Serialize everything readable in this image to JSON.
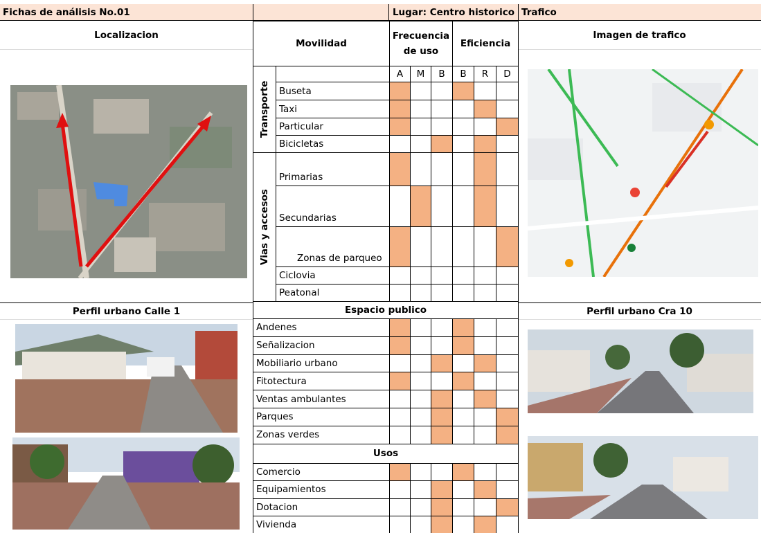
{
  "header": {
    "title": "Fichas de análisis No.01",
    "lugar": "Lugar: Centro historico",
    "trafico": "Trafico"
  },
  "panels": {
    "localizacion": "Localizacion",
    "imagen_trafico": "Imagen de trafico",
    "perfil_calle": "Perfil urbano Calle 1",
    "perfil_cra": "Perfil urbano Cra 10"
  },
  "movilidad": {
    "title": "Movilidad",
    "frecuencia": "Frecuencia de uso",
    "eficiencia": "Eficiencia",
    "columns": [
      "A",
      "M",
      "B",
      "B",
      "R",
      "D"
    ],
    "groups": [
      {
        "label": "Transporte",
        "rows": [
          {
            "label": "Buseta",
            "filled": [
              true,
              false,
              false,
              true,
              false,
              false
            ]
          },
          {
            "label": "Taxi",
            "filled": [
              true,
              false,
              false,
              false,
              true,
              false
            ]
          },
          {
            "label": "Particular",
            "filled": [
              true,
              false,
              false,
              false,
              false,
              true
            ]
          },
          {
            "label": "Bicicletas",
            "filled": [
              false,
              false,
              true,
              false,
              true,
              false
            ]
          }
        ]
      },
      {
        "label": "Vias y accesos",
        "rows": [
          {
            "label": "Primarias",
            "filled": [
              true,
              false,
              false,
              false,
              true,
              false
            ]
          },
          {
            "label": "Secundarias",
            "filled": [
              false,
              true,
              false,
              false,
              true,
              false
            ]
          },
          {
            "label": "Zonas de parqueo",
            "filled": [
              true,
              false,
              false,
              false,
              false,
              true
            ]
          },
          {
            "label": "Ciclovia",
            "filled": [
              false,
              false,
              false,
              false,
              false,
              false
            ]
          },
          {
            "label": "Peatonal",
            "filled": [
              false,
              false,
              false,
              false,
              false,
              false
            ]
          }
        ]
      }
    ]
  },
  "espacio_publico": {
    "title": "Espacio publico",
    "rows": [
      {
        "label": "Andenes",
        "filled": [
          true,
          false,
          false,
          true,
          false,
          false
        ]
      },
      {
        "label": "Señalizacion",
        "filled": [
          true,
          false,
          false,
          true,
          false,
          false
        ]
      },
      {
        "label": "Mobiliario urbano",
        "filled": [
          false,
          false,
          true,
          false,
          true,
          false
        ]
      },
      {
        "label": "Fitotectura",
        "filled": [
          true,
          false,
          false,
          true,
          false,
          false
        ]
      },
      {
        "label": "Ventas ambulantes",
        "filled": [
          false,
          false,
          true,
          false,
          true,
          false
        ]
      },
      {
        "label": "Parques",
        "filled": [
          false,
          false,
          true,
          false,
          false,
          true
        ]
      },
      {
        "label": "Zonas verdes",
        "filled": [
          false,
          false,
          true,
          false,
          false,
          true
        ]
      }
    ]
  },
  "usos": {
    "title": "Usos",
    "rows": [
      {
        "label": "Comercio",
        "filled": [
          true,
          false,
          false,
          true,
          false,
          false
        ]
      },
      {
        "label": "Equipamientos",
        "filled": [
          false,
          false,
          true,
          false,
          true,
          false
        ]
      },
      {
        "label": "Dotacion",
        "filled": [
          false,
          false,
          true,
          false,
          false,
          true
        ]
      },
      {
        "label": "Vivienda",
        "filled": [
          false,
          false,
          true,
          false,
          true,
          false
        ]
      }
    ]
  }
}
